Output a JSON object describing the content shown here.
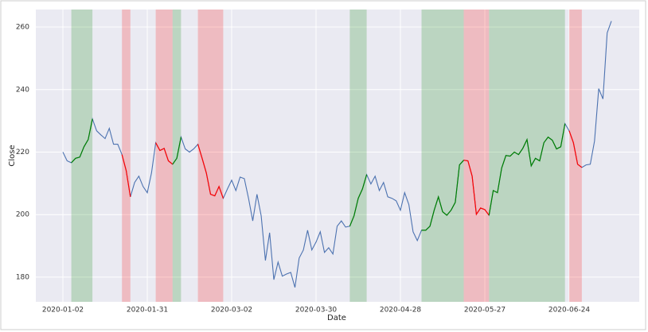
{
  "chart_data": {
    "type": "line",
    "x_label": "Date",
    "y_label": "Close",
    "categories": [
      "2020-01-02",
      null,
      null,
      null,
      null,
      null,
      null,
      null,
      null,
      null,
      null,
      null,
      null,
      null,
      null,
      null,
      null,
      null,
      null,
      null,
      "2020-01-31",
      null,
      null,
      null,
      null,
      null,
      null,
      null,
      null,
      null,
      null,
      null,
      null,
      null,
      null,
      null,
      null,
      null,
      null,
      null,
      "2020-03-02",
      null,
      null,
      null,
      null,
      null,
      null,
      null,
      null,
      null,
      null,
      null,
      null,
      null,
      null,
      null,
      null,
      null,
      null,
      null,
      "2020-03-30",
      null,
      null,
      null,
      null,
      null,
      null,
      null,
      null,
      null,
      null,
      null,
      null,
      null,
      null,
      null,
      null,
      null,
      null,
      null,
      "2020-04-28",
      null,
      null,
      null,
      null,
      null,
      null,
      null,
      null,
      null,
      null,
      null,
      null,
      null,
      null,
      null,
      null,
      null,
      null,
      null,
      "2020-05-27",
      null,
      null,
      null,
      null,
      null,
      null,
      null,
      null,
      null,
      null,
      null,
      null,
      null,
      null,
      null,
      null,
      null,
      null,
      null,
      "2020-06-24",
      null,
      null,
      null,
      null,
      null,
      null,
      null,
      null,
      null,
      null
    ],
    "values": [
      220,
      217.2,
      216.6,
      218,
      218.4,
      221.7,
      224,
      230.6,
      226.8,
      225.5,
      224.3,
      227.6,
      222.5,
      222.5,
      219.2,
      214.1,
      205.7,
      210.3,
      212.3,
      209,
      207,
      213.3,
      223,
      220.5,
      221.2,
      217.2,
      216.1,
      218,
      224.8,
      221,
      220,
      221,
      222.5,
      218,
      213.3,
      206.5,
      206,
      209,
      205.2,
      208.2,
      211,
      207.7,
      212,
      211.5,
      205.2,
      198,
      206.5,
      199.6,
      185.3,
      194.2,
      179.2,
      184.8,
      180.3,
      181,
      181.5,
      176.7,
      186.1,
      188.7,
      195,
      188.7,
      191.2,
      194.5,
      187.9,
      189.4,
      187.4,
      196.3,
      198,
      196,
      196.3,
      199.6,
      205.2,
      208.2,
      212.8,
      209.8,
      212.3,
      207.7,
      210.3,
      205.7,
      205.2,
      204.4,
      201.4,
      207,
      203.2,
      194.5,
      191.7,
      195,
      195,
      196.3,
      201.4,
      205.7,
      200.9,
      199.8,
      201.4,
      203.9,
      215.9,
      217.4,
      217.2,
      212.3,
      200.1,
      202.1,
      201.6,
      199.8,
      207.7,
      207,
      214.9,
      218.9,
      218.7,
      220,
      219.2,
      221.2,
      224,
      215.6,
      218,
      217.2,
      223,
      224.8,
      223.8,
      221,
      221.7,
      229.1,
      226.8,
      223,
      216.1,
      215.1,
      215.9,
      216.1,
      223.5,
      240.3,
      237,
      258.1,
      261.9
    ],
    "color": "#4c72b0",
    "regions": [
      {
        "start": 2,
        "end": 7,
        "color": "green"
      },
      {
        "start": 14,
        "end": 16,
        "color": "red"
      },
      {
        "start": 22,
        "end": 26,
        "color": "red"
      },
      {
        "start": 26,
        "end": 28,
        "color": "green"
      },
      {
        "start": 32,
        "end": 38,
        "color": "red"
      },
      {
        "start": 68,
        "end": 72,
        "color": "green"
      },
      {
        "start": 85,
        "end": 95,
        "color": "green"
      },
      {
        "start": 95,
        "end": 101,
        "color": "red"
      },
      {
        "start": 101,
        "end": 119,
        "color": "green"
      },
      {
        "start": 120,
        "end": 123,
        "color": "red"
      }
    ],
    "ylim": [
      172.1,
      265.6
    ],
    "yticks": [
      180,
      200,
      220,
      240,
      260
    ],
    "grid": true
  }
}
